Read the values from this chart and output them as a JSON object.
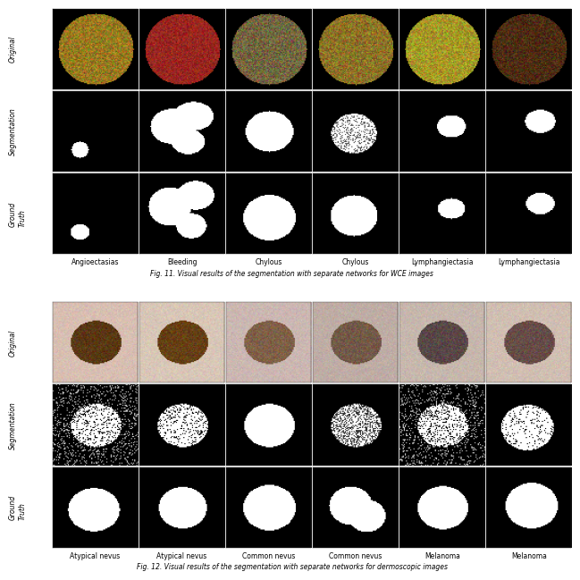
{
  "fig_width": 6.4,
  "fig_height": 6.44,
  "background_color": "#ffffff",
  "section1": {
    "row_labels": [
      "Original",
      "Segmentation",
      "Ground\nTruth"
    ],
    "col_labels": [
      "Angioectasias",
      "Bleeding",
      "Chylous",
      "Chylous",
      "Lymphangiectasia",
      "Lymphangiectasia"
    ],
    "caption": "Fig. 11. Visual results of the segmentation with separate networks for WCE images",
    "rows": 3,
    "cols": 6
  },
  "section2": {
    "row_labels": [
      "Original",
      "Segmentation",
      "Ground\nTruth"
    ],
    "col_labels": [
      "Atypical nevus",
      "Atypical nevus",
      "Common nevus",
      "Common nevus",
      "Melanoma",
      "Melanoma"
    ],
    "caption": "Fig. 12. Visual results of the segmentation with separate networks for dermoscopic images",
    "rows": 3,
    "cols": 6
  },
  "label_fontsize": 5.5,
  "caption_fontsize": 5.5,
  "col_label_fontsize": 5.5,
  "row_label_fontsize": 5.5
}
